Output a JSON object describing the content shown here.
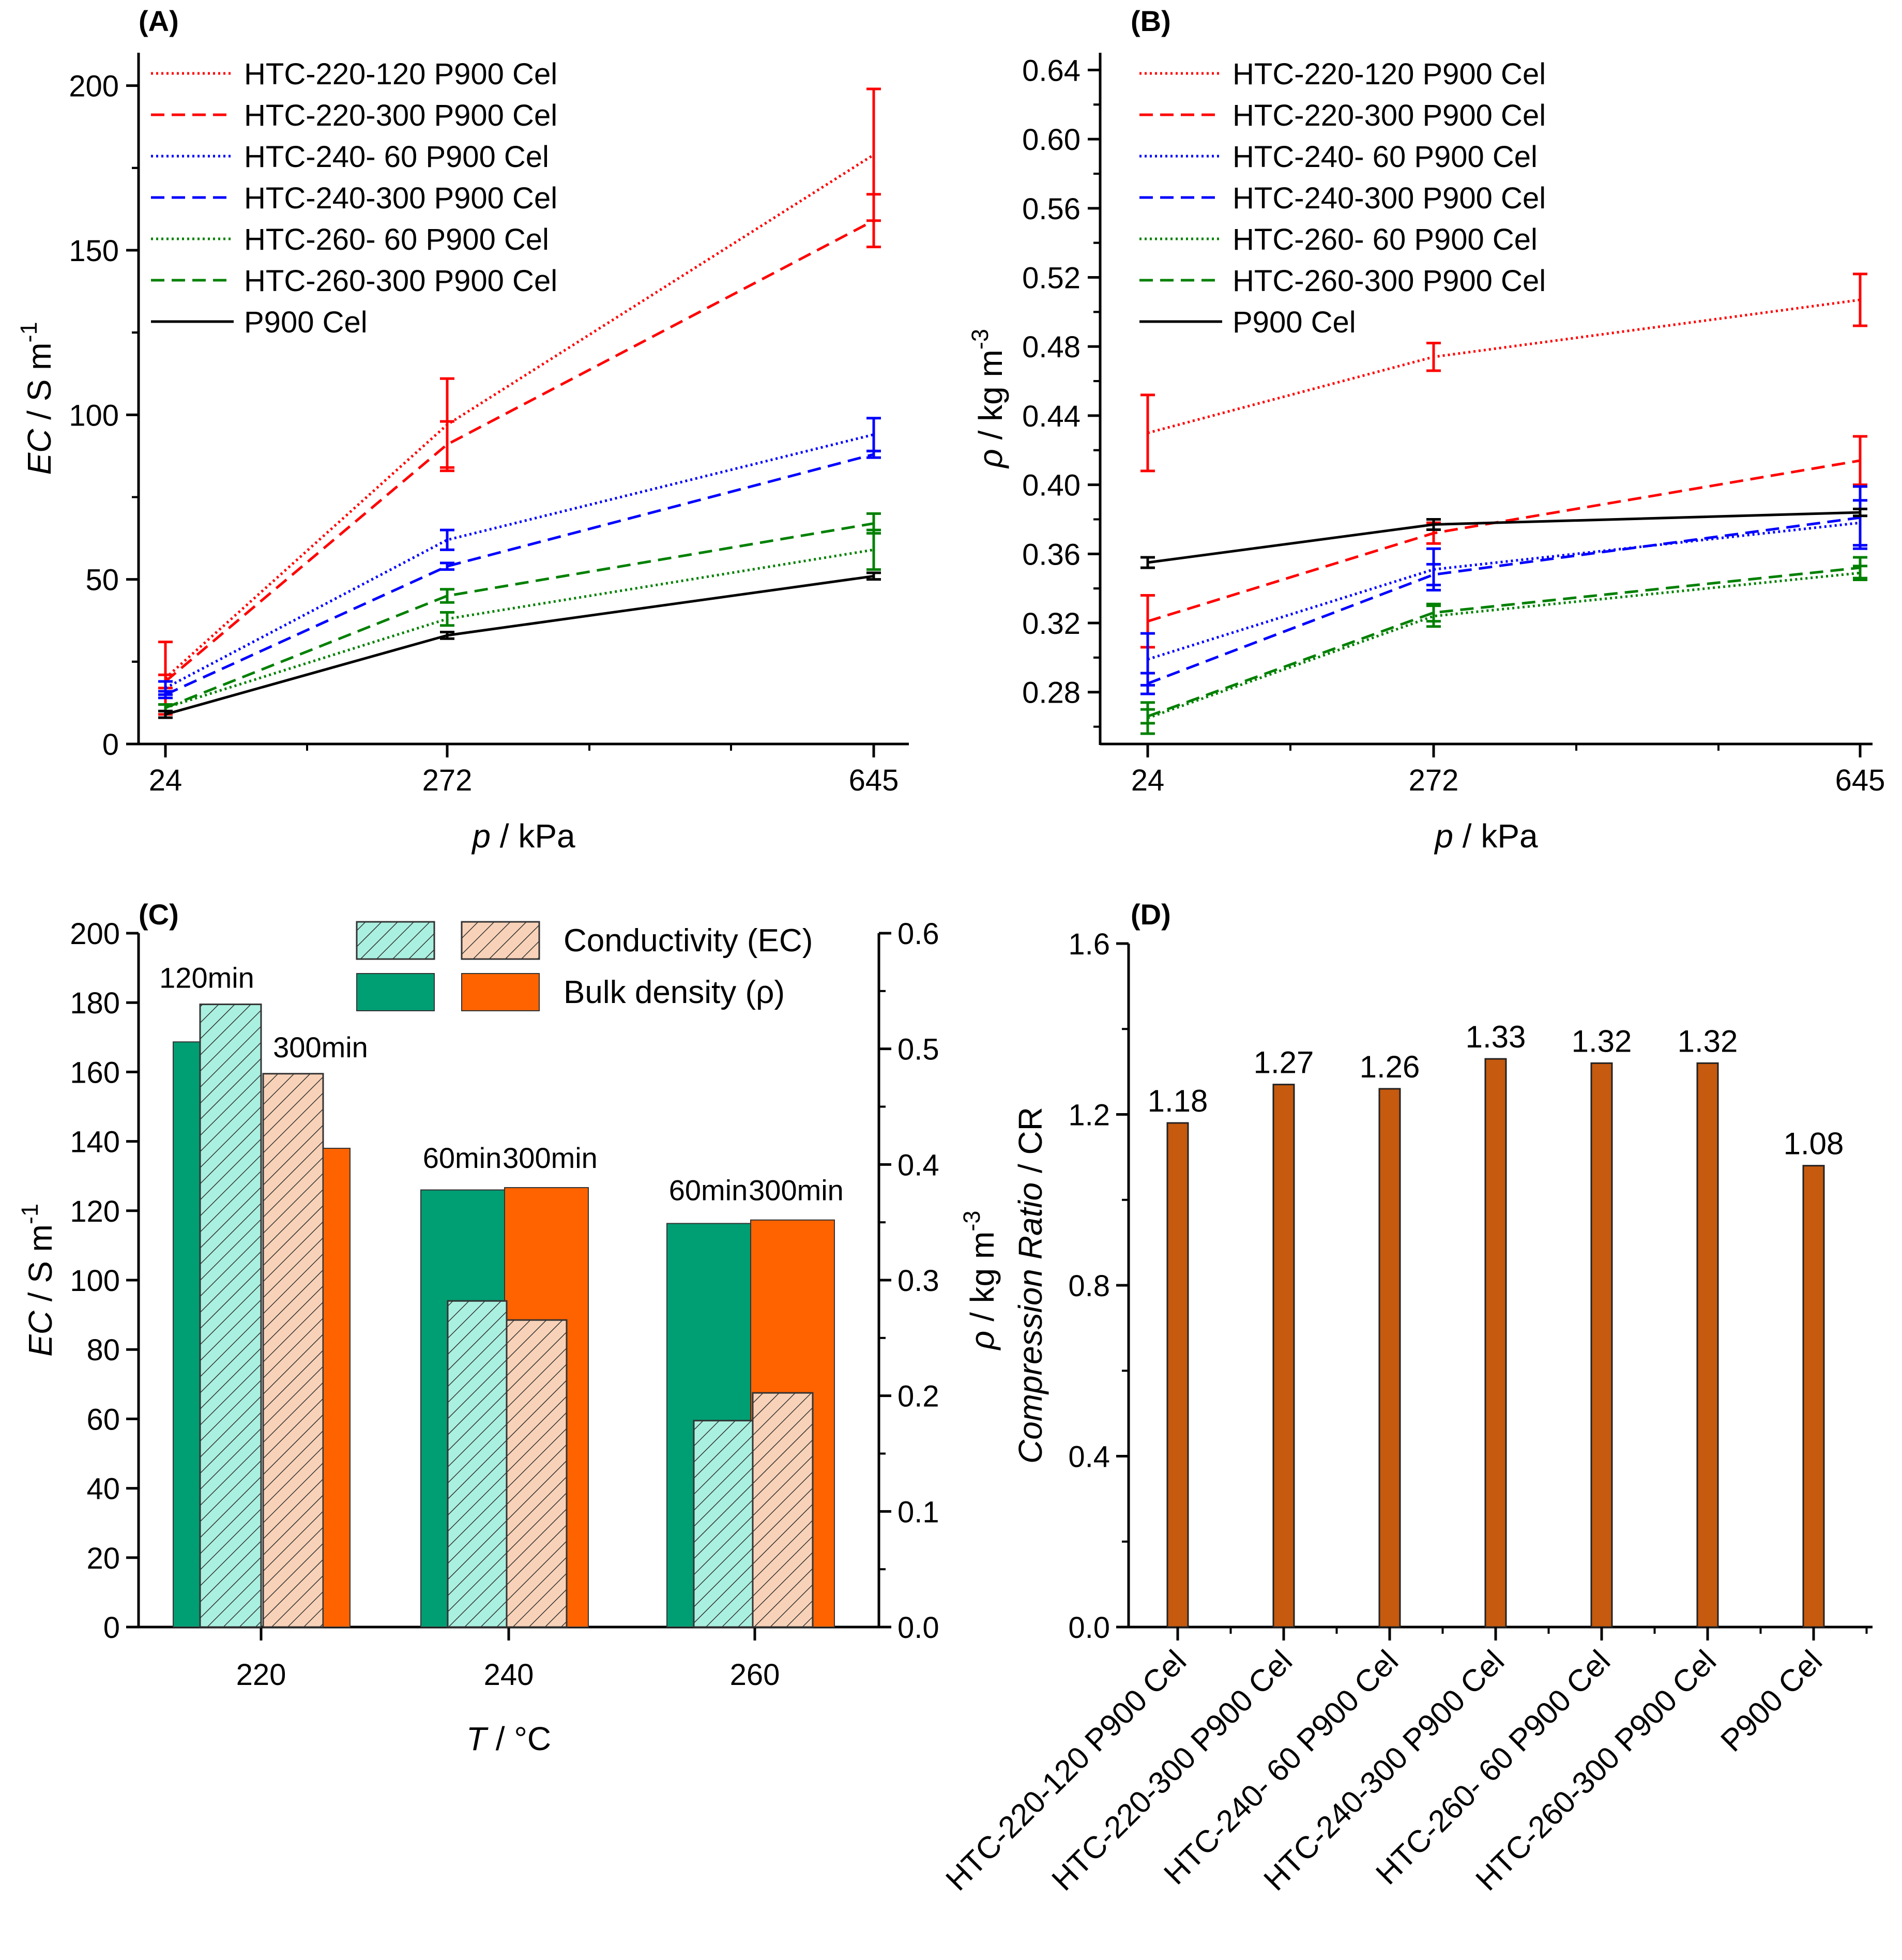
{
  "chart_data": [
    {
      "panel": "A",
      "panel_label": "(A)",
      "type": "line",
      "x_categories": [
        "24",
        "272",
        "645"
      ],
      "xlabel": {
        "var": "p",
        "unit": " / kPa"
      },
      "ylabel": {
        "var": "EC",
        "unit": " / S m",
        "sup": "-1"
      },
      "ylim": [
        0,
        210
      ],
      "yticks": [
        "0",
        "50",
        "100",
        "150",
        "200"
      ],
      "series": [
        {
          "name": "HTC-220-120 P900 Cel",
          "color": "#ff0000",
          "style": "dotted",
          "values": [
            20,
            97,
            179
          ],
          "errors": [
            11,
            14,
            20
          ]
        },
        {
          "name": "HTC-220-300 P900 Cel",
          "color": "#ff0000",
          "style": "dashed",
          "values": [
            19,
            91,
            159
          ],
          "errors": [
            2,
            7,
            8
          ]
        },
        {
          "name": "HTC-240- 60 P900 Cel",
          "color": "#0000ff",
          "style": "dotted",
          "values": [
            17,
            62,
            94
          ],
          "errors": [
            2,
            3,
            5
          ]
        },
        {
          "name": "HTC-240-300 P900 Cel",
          "color": "#0000ff",
          "style": "dashed",
          "values": [
            15,
            54,
            88
          ],
          "errors": [
            1,
            1,
            1
          ]
        },
        {
          "name": "HTC-260- 60 P900 Cel",
          "color": "#008000",
          "style": "dotted",
          "values": [
            11,
            38,
            59
          ],
          "errors": [
            1,
            2,
            6
          ]
        },
        {
          "name": "HTC-260-300 P900 Cel",
          "color": "#008000",
          "style": "dashed",
          "values": [
            11,
            45,
            67
          ],
          "errors": [
            1,
            2,
            3
          ]
        },
        {
          "name": "P900 Cel",
          "color": "#000000",
          "style": "solid",
          "values": [
            9,
            33,
            51
          ],
          "errors": [
            1,
            1,
            1
          ]
        }
      ]
    },
    {
      "panel": "B",
      "panel_label": "(B)",
      "type": "line",
      "x_categories": [
        "24",
        "272",
        "645"
      ],
      "xlabel": {
        "var": "p",
        "unit": " / kPa"
      },
      "ylabel": {
        "var": "ρ",
        "unit": " / kg m",
        "sup": "-3"
      },
      "ylim": [
        0.25,
        0.65
      ],
      "yticks": [
        "0.28",
        "0.32",
        "0.36",
        "0.40",
        "0.44",
        "0.48",
        "0.52",
        "0.56",
        "0.60",
        "0.64"
      ],
      "series": [
        {
          "name": "HTC-220-120 P900 Cel",
          "color": "#ff0000",
          "style": "dotted",
          "values": [
            0.43,
            0.474,
            0.507
          ],
          "errors": [
            0.022,
            0.008,
            0.015
          ]
        },
        {
          "name": "HTC-220-300 P900 Cel",
          "color": "#ff0000",
          "style": "dashed",
          "values": [
            0.321,
            0.372,
            0.414
          ],
          "errors": [
            0.015,
            0.006,
            0.014
          ]
        },
        {
          "name": "HTC-240- 60 P900 Cel",
          "color": "#0000ff",
          "style": "dotted",
          "values": [
            0.299,
            0.351,
            0.378
          ],
          "errors": [
            0.015,
            0.012,
            0.013
          ]
        },
        {
          "name": "HTC-240-300 P900 Cel",
          "color": "#0000ff",
          "style": "dashed",
          "values": [
            0.285,
            0.348,
            0.381
          ],
          "errors": [
            0.006,
            0.006,
            0.018
          ]
        },
        {
          "name": "HTC-260- 60 P900 Cel",
          "color": "#008000",
          "style": "dotted",
          "values": [
            0.265,
            0.324,
            0.349
          ],
          "errors": [
            0.009,
            0.006,
            0.004
          ]
        },
        {
          "name": "HTC-260-300 P900 Cel",
          "color": "#008000",
          "style": "dashed",
          "values": [
            0.266,
            0.326,
            0.352
          ],
          "errors": [
            0.004,
            0.005,
            0.006
          ]
        },
        {
          "name": "P900 Cel",
          "color": "#000000",
          "style": "solid",
          "values": [
            0.355,
            0.377,
            0.384
          ],
          "errors": [
            0.003,
            0.003,
            0.002
          ]
        }
      ]
    },
    {
      "panel": "C",
      "panel_label": "(C)",
      "type": "bar",
      "categories": [
        "220",
        "240",
        "260"
      ],
      "xlabel": {
        "var": "T",
        "unit": " / °C"
      },
      "ylabel_left": {
        "var": "EC",
        "unit": " / S m",
        "sup": "-1"
      },
      "ylabel_right": {
        "var": "ρ",
        "unit": " / kg m",
        "sup": "-3"
      },
      "ylim_left": [
        0,
        200
      ],
      "ylim_right": [
        0,
        0.6
      ],
      "yticks_left": [
        "0",
        "20",
        "40",
        "60",
        "80",
        "100",
        "120",
        "140",
        "160",
        "180",
        "200"
      ],
      "yticks_right": [
        "0.0",
        "0.1",
        "0.2",
        "0.3",
        "0.4",
        "0.5",
        "0.6"
      ],
      "duration_labels": [
        [
          "120min",
          "300min"
        ],
        [
          "60min",
          "300min"
        ],
        [
          "60min",
          "300min"
        ]
      ],
      "conductivity_short": [
        179.5,
        94,
        59.5
      ],
      "conductivity_long": [
        159.5,
        88.5,
        67.5
      ],
      "density_short": [
        0.506,
        0.378,
        0.349
      ],
      "density_long": [
        0.414,
        0.38,
        0.352
      ],
      "legend": {
        "conductivity": "Conductivity (EC)",
        "density": "Bulk density (ρ)"
      },
      "colors": {
        "ec_short": "#aaf0e0",
        "ec_long": "#f8d2b8",
        "rho_short": "#009e73",
        "rho_long": "#ff6300"
      }
    },
    {
      "panel": "D",
      "panel_label": "(D)",
      "type": "bar",
      "categories": [
        "HTC-220-120 P900 Cel",
        "HTC-220-300 P900 Cel",
        "HTC-240- 60 P900 Cel",
        "HTC-240-300 P900 Cel",
        "HTC-260- 60 P900 Cel",
        "HTC-260-300 P900 Cel",
        "P900 Cel"
      ],
      "values": [
        1.18,
        1.27,
        1.26,
        1.33,
        1.32,
        1.32,
        1.08
      ],
      "value_labels": [
        "1.18",
        "1.27",
        "1.26",
        "1.33",
        "1.32",
        "1.32",
        "1.08"
      ],
      "ylabel": {
        "var": "Compression Ratio",
        "unit": " / CR"
      },
      "ylim": [
        0,
        1.6
      ],
      "yticks": [
        "0.0",
        "0.4",
        "0.8",
        "1.2",
        "1.6"
      ],
      "bar_color": "#c65a0e"
    }
  ]
}
